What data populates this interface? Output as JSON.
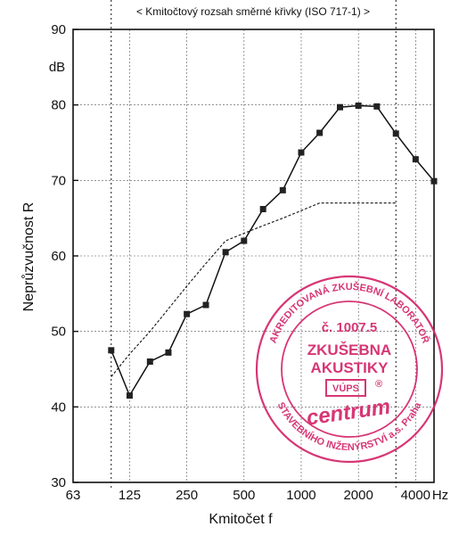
{
  "chart_data": {
    "type": "line",
    "title": "",
    "range_label": "< Kmitočtový rozsah směrné křivky (ISO 717-1) >",
    "xlabel": "Kmitočet  f",
    "ylabel": "Neprůzvučnost  R",
    "yunit": "dB",
    "xunit": "Hz",
    "xscale": "log (1/3-octave bands)",
    "ylim": [
      30,
      90
    ],
    "xlim": [
      63,
      5000
    ],
    "grid": true,
    "legend": "none",
    "x_ticks": [
      "63",
      "125",
      "250",
      "500",
      "1000",
      "2000",
      "4000"
    ],
    "y_ticks": [
      "30",
      "40",
      "50",
      "60",
      "70",
      "80",
      "90"
    ],
    "range_bounds_hz": [
      100,
      3150
    ],
    "series": [
      {
        "style": "solid with square markers",
        "x": [
          100,
          125,
          160,
          200,
          250,
          315,
          400,
          500,
          630,
          800,
          1000,
          1250,
          1600,
          2000,
          2500,
          3150,
          4000,
          5000
        ],
        "y": [
          47.5,
          41.5,
          46.0,
          47.2,
          52.3,
          53.5,
          60.5,
          62.0,
          66.2,
          68.7,
          73.7,
          76.3,
          79.7,
          79.9,
          79.8,
          76.2,
          72.8,
          69.9
        ]
      },
      {
        "style": "dashed reference curve",
        "x": [
          100,
          125,
          160,
          200,
          250,
          315,
          400,
          500,
          630,
          800,
          1000,
          1250,
          1600,
          2000,
          2500,
          3150
        ],
        "y": [
          44.0,
          47.0,
          50.0,
          53.0,
          56.0,
          59.0,
          62.0,
          63.0,
          64.0,
          65.0,
          66.0,
          67.0,
          67.0,
          67.0,
          67.0,
          67.0
        ]
      }
    ],
    "stamp": {
      "ring_top": "AKREDITOVANÁ ZKUŠEBNÍ LABORATOŘ",
      "ring_bottom": "STAVEBNÍHO INŽENÝRSTVÍ a.s. Praha",
      "number": "č. 1007.5",
      "line1": "ZKUŠEBNA",
      "line2": "AKUSTIKY",
      "logo": "VÚPS",
      "brand": "centrum",
      "reg": "®",
      "color": "#d4266a"
    }
  }
}
